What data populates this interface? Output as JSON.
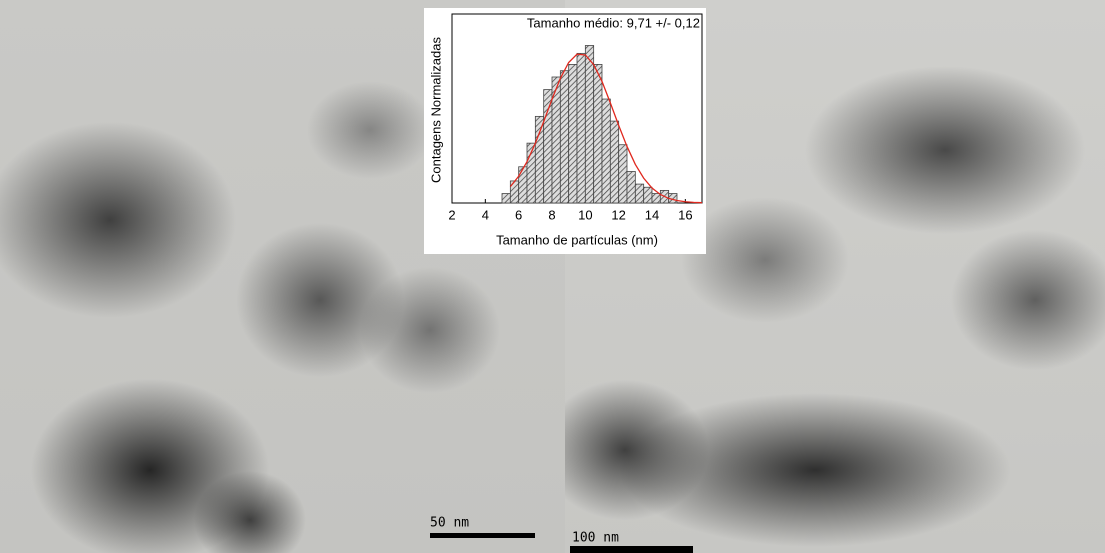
{
  "chart_data": {
    "type": "histogram",
    "title": "Tamanho médio: 9,71 +/- 0,12",
    "xlabel": "Tamanho de partículas (nm)",
    "ylabel": "Contagens Normalizadas",
    "bins": [
      5,
      5.5,
      6,
      6.5,
      7,
      7.5,
      8,
      8.5,
      9,
      9.5,
      10,
      10.5,
      11,
      11.5,
      12,
      12.5,
      13,
      13.5,
      14,
      14.5,
      15,
      15.5
    ],
    "values": [
      0.06,
      0.14,
      0.23,
      0.38,
      0.55,
      0.72,
      0.8,
      0.84,
      0.88,
      0.95,
      1.0,
      0.88,
      0.66,
      0.52,
      0.37,
      0.2,
      0.12,
      0.1,
      0.06,
      0.08,
      0.06
    ],
    "color": "#444444",
    "fit": {
      "color": "#e0281e",
      "x": [
        5.5,
        6,
        6.5,
        7,
        7.5,
        8,
        8.5,
        9,
        9.5,
        10,
        10.5,
        11,
        11.5,
        12,
        12.5,
        13,
        13.5,
        14,
        14.5,
        15,
        15.5,
        16,
        16.5,
        17
      ],
      "values": [
        0.104,
        0.17,
        0.262,
        0.379,
        0.516,
        0.659,
        0.791,
        0.892,
        0.945,
        0.94,
        0.879,
        0.772,
        0.636,
        0.493,
        0.359,
        0.245,
        0.158,
        0.095,
        0.054,
        0.029,
        0.016,
        0.008,
        0.004,
        0.002
      ]
    },
    "xlim": [
      2,
      17
    ],
    "xticks": [
      2,
      4,
      6,
      8,
      10,
      12,
      14,
      16
    ],
    "ylim": [
      0,
      1.2
    ]
  },
  "scale_bars": [
    {
      "label": "50 nm"
    },
    {
      "label": "100 nm"
    }
  ]
}
